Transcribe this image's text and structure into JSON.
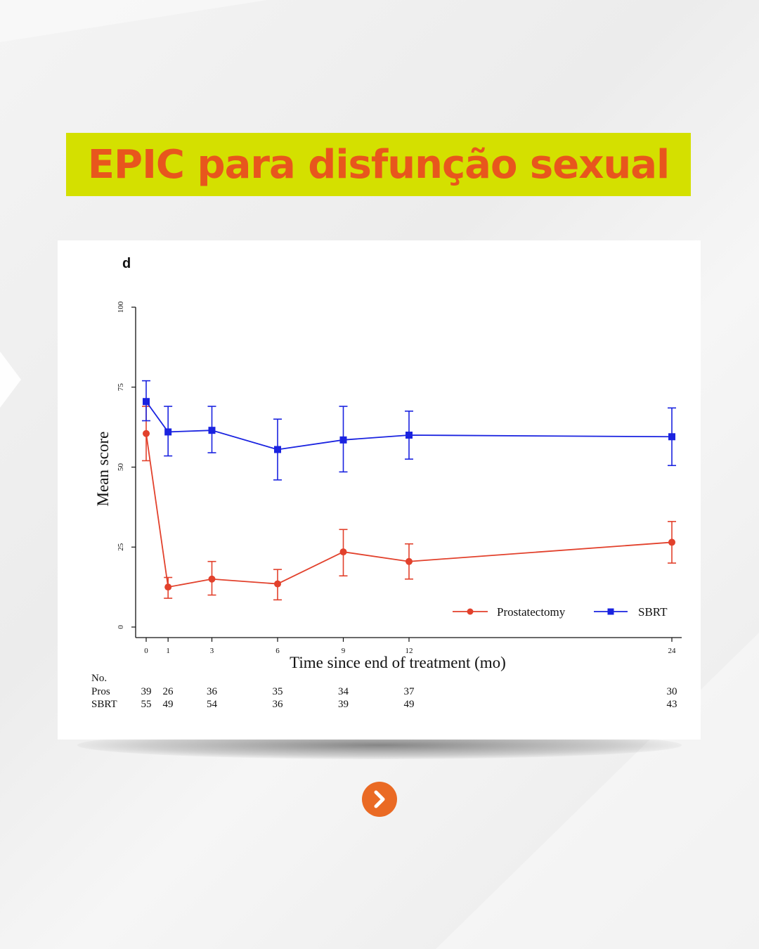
{
  "header": {
    "title": "EPIC para disfunção sexual"
  },
  "chart_data": {
    "type": "line",
    "panel_label": "d",
    "xlabel": "Time since end of treatment (mo)",
    "ylabel": "Mean score",
    "x": [
      0,
      1,
      3,
      6,
      9,
      12,
      24
    ],
    "x_tick_labels": [
      "0",
      "1",
      "3",
      "6",
      "9",
      "12",
      "24"
    ],
    "xlim": [
      0,
      24
    ],
    "ylim": [
      0,
      100
    ],
    "y_ticks": [
      0,
      25,
      50,
      75,
      100
    ],
    "y_tick_labels": [
      "0",
      "25",
      "50",
      "75",
      "100"
    ],
    "grid": false,
    "legend_position": "bottom-right",
    "series": [
      {
        "name": "Prostatectomy",
        "color": "#e2412c",
        "marker": "circle",
        "values": [
          60.5,
          12.5,
          15.0,
          13.5,
          23.5,
          20.5,
          26.5
        ],
        "ci_low": [
          52,
          9,
          10,
          8.5,
          16,
          15,
          20
        ],
        "ci_high": [
          69,
          15.5,
          20.5,
          18,
          30.5,
          26,
          33
        ]
      },
      {
        "name": "SBRT",
        "color": "#1a23e0",
        "marker": "square",
        "values": [
          70.5,
          61,
          61.5,
          55.5,
          58.5,
          60,
          59.5
        ],
        "ci_low": [
          64.5,
          53.5,
          54.5,
          46,
          48.5,
          52.5,
          50.5
        ],
        "ci_high": [
          77,
          69,
          69,
          65,
          69,
          67.5,
          68.5
        ]
      }
    ],
    "at_risk": {
      "header": "No.",
      "rows": [
        {
          "label": "Pros",
          "counts": [
            "39",
            "26",
            "36",
            "35",
            "34",
            "37",
            "30"
          ]
        },
        {
          "label": "SBRT",
          "counts": [
            "55",
            "49",
            "54",
            "36",
            "39",
            "49",
            "43"
          ]
        }
      ]
    }
  },
  "navigation": {
    "next_icon": "chevron-right-icon",
    "accent_color": "#ea6a24"
  }
}
